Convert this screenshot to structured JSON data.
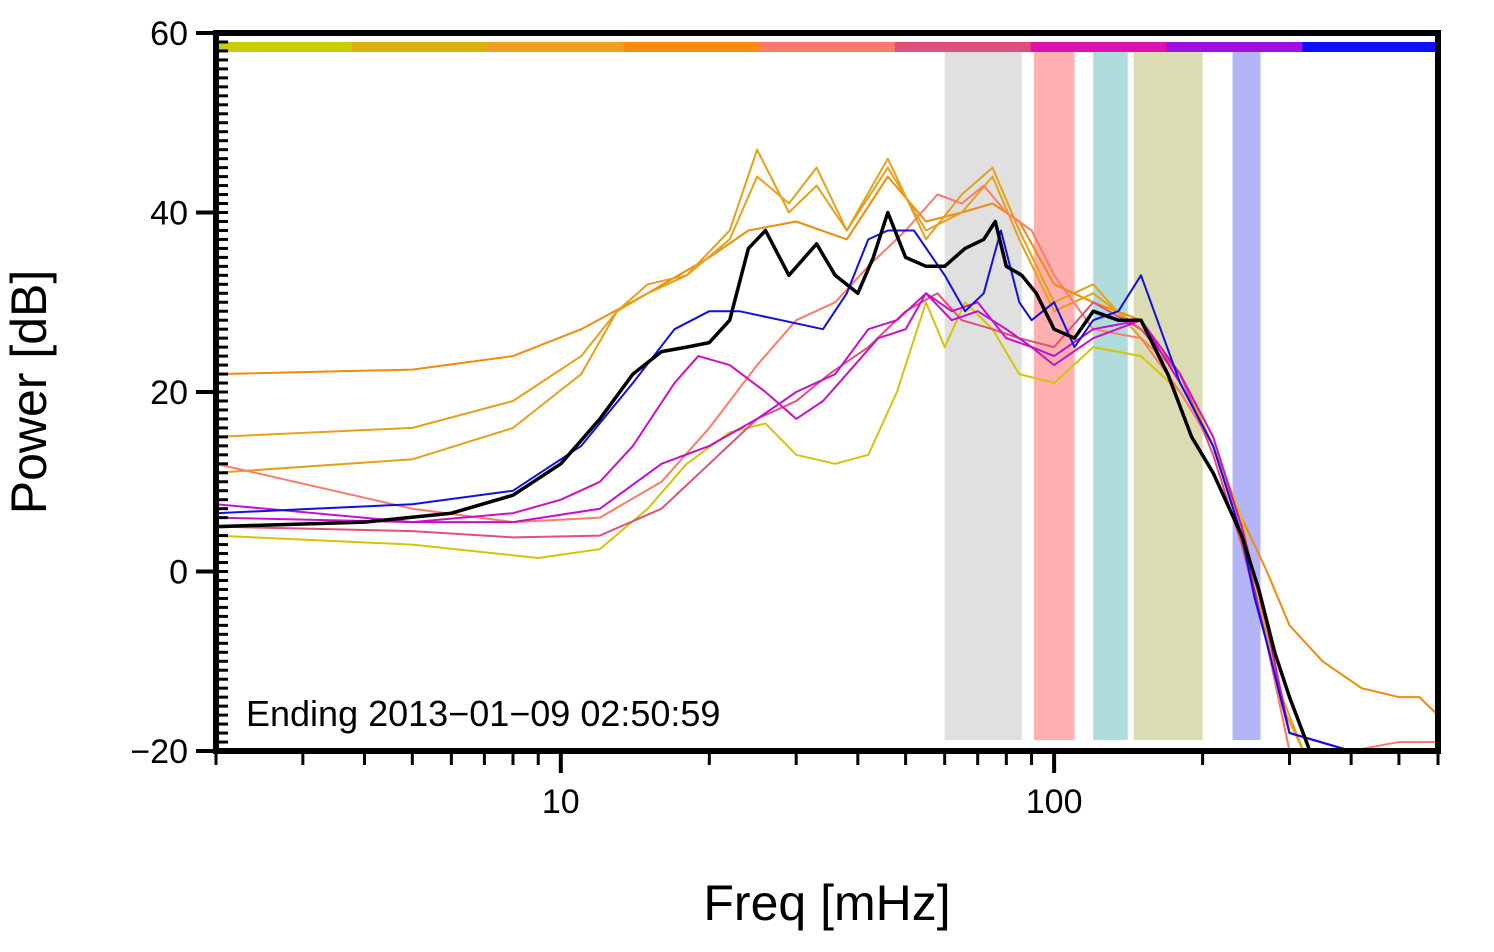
{
  "chart_data": {
    "type": "line",
    "title": "",
    "xlabel": "Freq [mHz]",
    "ylabel": "Power [dB]",
    "x_scale": "log",
    "xlim": [
      2,
      600
    ],
    "ylim": [
      -20,
      60
    ],
    "x_tick_labels": [
      {
        "value": 10,
        "label": "10"
      },
      {
        "value": 100,
        "label": "100"
      }
    ],
    "x_minor_ticks": [
      2,
      3,
      4,
      5,
      6,
      7,
      8,
      9,
      20,
      30,
      40,
      50,
      60,
      70,
      80,
      90,
      200,
      300,
      400,
      500,
      600
    ],
    "y_ticks": [
      {
        "value": -20,
        "label": "−20"
      },
      {
        "value": 0,
        "label": "0"
      },
      {
        "value": 20,
        "label": "20"
      },
      {
        "value": 40,
        "label": "40"
      },
      {
        "value": 60,
        "label": "60"
      }
    ],
    "grid": false,
    "annotation": "Ending 2013−01−09 02:50:59",
    "colors": {
      "frame": "#000000",
      "mean": "#000000"
    },
    "top_color_bar": [
      "#c8cc0a",
      "#d9b20a",
      "#f0a01c",
      "#ff8c0a",
      "#ff7a6a",
      "#e0507a",
      "#e010b0",
      "#a010e0",
      "#1010ff"
    ],
    "bands": [
      {
        "from": 60,
        "to": 86,
        "color": "#e0e0e0"
      },
      {
        "from": 91,
        "to": 110,
        "color": "#ffb0b0"
      },
      {
        "from": 120,
        "to": 141,
        "color": "#b0dcdc"
      },
      {
        "from": 145,
        "to": 200,
        "color": "#dcdcb4"
      },
      {
        "from": 230,
        "to": 262,
        "color": "#b4b4f8"
      }
    ],
    "series": [
      {
        "color": "#f08c0a",
        "width": 2,
        "x": [
          2,
          5,
          8,
          11,
          15,
          20,
          24,
          30,
          38,
          46,
          55,
          65,
          75,
          85,
          100,
          120,
          150,
          180,
          210,
          240,
          270,
          300,
          350,
          420,
          500,
          550,
          600
        ],
        "y": [
          22,
          22.5,
          24,
          27,
          31,
          35,
          38,
          39,
          37,
          44,
          39,
          40,
          41,
          39,
          32,
          30,
          28,
          22,
          14,
          6,
          0,
          -6,
          -10,
          -13,
          -14,
          -14,
          -16
        ]
      },
      {
        "color": "#e6a01a",
        "width": 2,
        "x": [
          2,
          5,
          8,
          11,
          13,
          15,
          18,
          22,
          25,
          29,
          33,
          38,
          46,
          55,
          65,
          75,
          85,
          100,
          120,
          150,
          180,
          210,
          240,
          270,
          290,
          320,
          400,
          500,
          600
        ],
        "y": [
          15,
          16,
          19,
          24,
          29,
          31,
          33,
          38,
          47,
          40,
          43,
          38,
          45,
          38,
          40,
          44,
          37,
          29,
          31,
          27,
          22,
          14,
          5,
          -7,
          -14,
          -20,
          -20,
          -20,
          -20
        ]
      },
      {
        "color": "#e6a01a",
        "width": 2,
        "x": [
          2,
          5,
          8,
          11,
          13,
          15,
          18,
          22,
          25,
          29,
          33,
          38,
          46,
          55,
          65,
          75,
          85,
          100,
          120,
          150,
          180,
          210,
          240,
          270,
          290,
          320,
          400,
          500,
          600
        ],
        "y": [
          11,
          12.5,
          16,
          22,
          29,
          32,
          33,
          37,
          44,
          41,
          45,
          38,
          46,
          37,
          42,
          45,
          38,
          30,
          32,
          26,
          22,
          14,
          4,
          -8,
          -15,
          -20,
          -20,
          -20,
          -20
        ]
      },
      {
        "color": "#d4c40a",
        "width": 2,
        "x": [
          2,
          5,
          9,
          12,
          15,
          18,
          22,
          26,
          30,
          36,
          42,
          48,
          55,
          60,
          66,
          75,
          85,
          100,
          120,
          150,
          180,
          210,
          240,
          270,
          300,
          400,
          600
        ],
        "y": [
          4,
          3,
          1.5,
          2.5,
          7,
          12,
          15.5,
          16.5,
          13,
          12,
          13,
          20,
          30,
          25,
          30,
          27,
          22,
          21,
          25,
          24,
          20,
          14,
          6,
          -8,
          -20,
          -20,
          -20
        ]
      },
      {
        "color": "#ff7a6a",
        "width": 2,
        "x": [
          2,
          5,
          8,
          12,
          16,
          20,
          25,
          30,
          36,
          42,
          50,
          58,
          65,
          72,
          80,
          90,
          100,
          120,
          150,
          180,
          210,
          240,
          270,
          300,
          400,
          500,
          600
        ],
        "y": [
          12,
          7,
          5.5,
          6,
          10,
          16,
          23,
          28,
          30,
          34,
          38,
          42,
          41,
          43,
          40,
          38,
          33,
          27,
          26,
          20,
          14,
          4,
          -8,
          -20,
          -20,
          -19,
          -19
        ]
      },
      {
        "color": "#e0507a",
        "width": 2,
        "x": [
          2,
          5,
          8,
          12,
          16,
          20,
          25,
          30,
          35,
          42,
          50,
          58,
          65,
          75,
          85,
          100,
          120,
          150,
          180,
          210,
          240,
          270,
          300,
          400,
          600
        ],
        "y": [
          5,
          4.5,
          3.8,
          4,
          7,
          12,
          17,
          19,
          22,
          25,
          29,
          31,
          28,
          27,
          26,
          25,
          30,
          27,
          22,
          13,
          3,
          -8,
          -18,
          -20,
          -20
        ]
      },
      {
        "color": "#d010c0",
        "width": 2,
        "x": [
          2,
          5,
          8,
          10,
          12,
          14,
          17,
          19,
          22,
          26,
          30,
          34,
          38,
          44,
          50,
          55,
          62,
          70,
          80,
          90,
          100,
          120,
          150,
          180,
          210,
          240,
          270,
          300,
          400,
          600
        ],
        "y": [
          6,
          5.5,
          6.5,
          8,
          10,
          14,
          21,
          24,
          23,
          20,
          17,
          19,
          22,
          26,
          27,
          31,
          29,
          30,
          26,
          25,
          23,
          26,
          28,
          22,
          15,
          5,
          -6,
          -18,
          -20,
          -20
        ]
      },
      {
        "color": "#c010d0",
        "width": 2,
        "x": [
          2,
          5,
          8,
          12,
          16,
          20,
          25,
          30,
          36,
          42,
          48,
          55,
          62,
          70,
          80,
          90,
          100,
          120,
          150,
          180,
          210,
          240,
          270,
          300,
          400,
          600
        ],
        "y": [
          7.5,
          5.5,
          5.5,
          7,
          12,
          14,
          17,
          20,
          22,
          27,
          28,
          31,
          28,
          29,
          27,
          25,
          24,
          27,
          28,
          21,
          14,
          4,
          -8,
          -18,
          -20,
          -20
        ]
      },
      {
        "color": "#1010e0",
        "width": 2,
        "x": [
          2,
          5,
          8,
          11,
          14,
          17,
          20,
          23,
          28,
          34,
          38,
          42,
          46,
          52,
          60,
          66,
          72,
          78,
          85,
          90,
          100,
          110,
          120,
          135,
          150,
          180,
          210,
          240,
          255,
          270,
          300,
          400,
          600
        ],
        "y": [
          6.5,
          7.5,
          9,
          14,
          21,
          27,
          29,
          29,
          28,
          27,
          31,
          37,
          38,
          38,
          33,
          29,
          31,
          38,
          30,
          28,
          30,
          25,
          28,
          29,
          33,
          21,
          14,
          4,
          -3,
          -8,
          -18,
          -20,
          -20
        ]
      },
      {
        "color": "#000000",
        "width": 3.5,
        "x": [
          2,
          4,
          6,
          8,
          10,
          12,
          14,
          16,
          18,
          20,
          22,
          24,
          26,
          29,
          33,
          36,
          40,
          43,
          46,
          50,
          55,
          60,
          66,
          72,
          76,
          80,
          86,
          92,
          100,
          110,
          120,
          135,
          150,
          170,
          190,
          210,
          240,
          260,
          280,
          300,
          330,
          400,
          600
        ],
        "y": [
          5,
          5.5,
          6.5,
          8.5,
          12,
          17,
          22,
          24.5,
          25,
          25.5,
          28,
          36,
          38,
          33,
          36.5,
          33,
          31,
          35,
          40,
          35,
          34,
          34,
          36,
          37,
          39,
          34,
          33,
          31,
          27,
          26,
          29,
          28,
          28,
          22,
          15,
          11,
          4,
          -2,
          -9,
          -14,
          -20,
          -20,
          -20
        ]
      }
    ]
  }
}
